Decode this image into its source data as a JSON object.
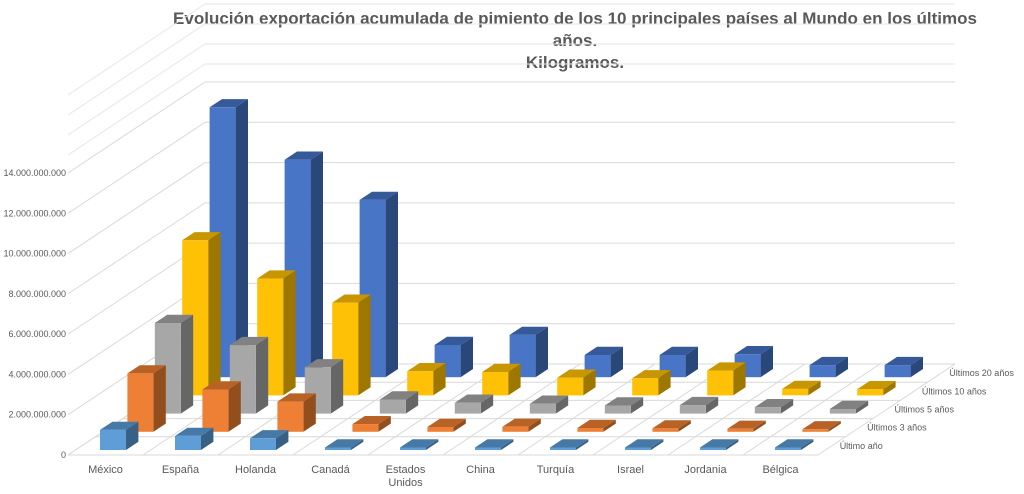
{
  "title": {
    "line1": "Evolución exportación acumulada de pimiento de los 10 principales países al Mundo en los últimos años.",
    "line2": "Kilogramos."
  },
  "chart_data": {
    "type": "bar",
    "subtype": "3d-column",
    "categories": [
      "México",
      "España",
      "Holanda",
      "Canadá",
      "Estados Unidos",
      "China",
      "Turquía",
      "Israel",
      "Jordania",
      "Bélgica"
    ],
    "category_label_lines": [
      [
        "México"
      ],
      [
        "España"
      ],
      [
        "Holanda"
      ],
      [
        "Canadá"
      ],
      [
        "Estados",
        "Unidos"
      ],
      [
        "China"
      ],
      [
        "Turquía"
      ],
      [
        "Israel"
      ],
      [
        "Jordania"
      ],
      [
        "Bélgica"
      ]
    ],
    "series": [
      {
        "name": "Último año",
        "color": "#5B9BD5",
        "values": [
          1000000000,
          700000000,
          580000000,
          100000000,
          60000000,
          70000000,
          50000000,
          40000000,
          35000000,
          30000000
        ]
      },
      {
        "name": "Últimos 3 años",
        "color": "#ED7D31",
        "values": [
          2900000000,
          2100000000,
          1500000000,
          380000000,
          240000000,
          250000000,
          190000000,
          170000000,
          150000000,
          110000000
        ]
      },
      {
        "name": "Últimos 5 años",
        "color": "#A5A5A5",
        "values": [
          4500000000,
          3400000000,
          2300000000,
          700000000,
          540000000,
          490000000,
          400000000,
          420000000,
          320000000,
          230000000
        ]
      },
      {
        "name": "Últimos 10 años",
        "color": "#FFC000",
        "values": [
          7700000000,
          5800000000,
          4600000000,
          1200000000,
          1160000000,
          880000000,
          850000000,
          1230000000,
          320000000,
          310000000
        ]
      },
      {
        "name": "Últimos 20 años",
        "color": "#4472C4",
        "values": [
          13400000000,
          10800000000,
          8800000000,
          1600000000,
          2100000000,
          1100000000,
          1100000000,
          1140000000,
          600000000,
          600000000
        ]
      }
    ],
    "yticks": [
      "0",
      "2.000.000.000",
      "4.000.000.000",
      "6.000.000.000",
      "8.000.000.000",
      "10.000.000.000",
      "12.000.000.000",
      "14.000.000.000"
    ],
    "ylim": [
      0,
      14000000000
    ],
    "grid": true,
    "legend": "none"
  }
}
